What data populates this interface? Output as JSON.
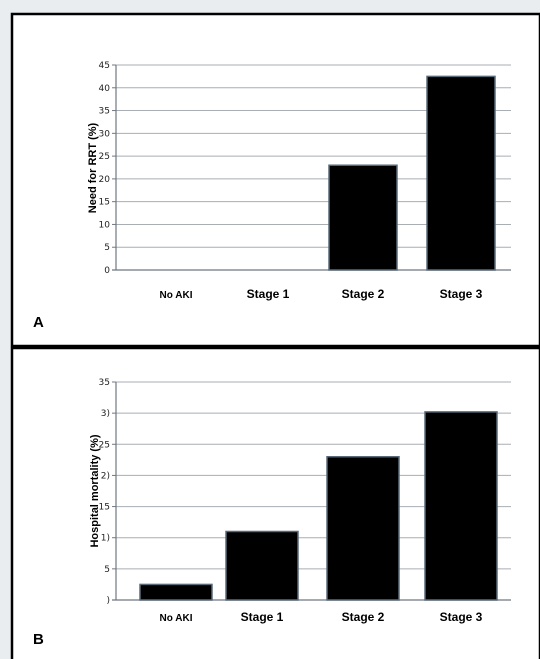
{
  "chart_data": [
    {
      "type": "bar",
      "panel": "A",
      "title": "",
      "xlabel": "",
      "ylabel": "Need for RRT (%)",
      "categories": [
        "No AKI",
        "Stage 1",
        "Stage 2",
        "Stage 3"
      ],
      "values": [
        0,
        0,
        23,
        42.5
      ],
      "ylim": [
        0,
        45
      ],
      "yticks": [
        "0",
        "5",
        "10",
        "15",
        "20",
        "25",
        "30",
        "35",
        "40",
        "45"
      ],
      "grid": true,
      "legend": "none",
      "bar_color": "#000000"
    },
    {
      "type": "bar",
      "panel": "B",
      "title": "",
      "xlabel": "",
      "ylabel": "Hospital mortality  (%)",
      "categories": [
        "No AKI",
        "Stage 1",
        "Stage 2",
        "Stage 3"
      ],
      "values": [
        2.5,
        11,
        23,
        30.2
      ],
      "ylim": [
        0,
        35
      ],
      "yticks": [
        ")",
        "5",
        "1)",
        "15",
        "2)",
        "25",
        "3)",
        "35"
      ],
      "grid": true,
      "legend": "none",
      "bar_color": "#000000"
    }
  ],
  "colors": {
    "page_background": "#e9edf0",
    "panel_border": "#000000",
    "bar_fill": "#000000",
    "grid": "#a8aeb4"
  }
}
